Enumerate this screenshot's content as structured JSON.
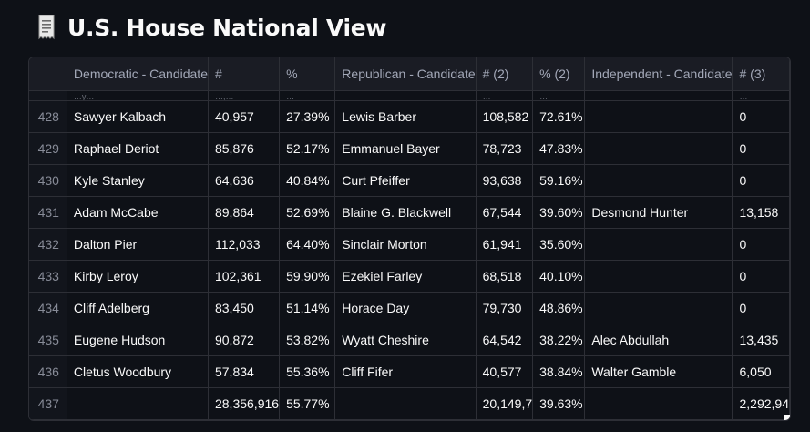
{
  "page": {
    "title": "U.S. House National View",
    "icon": "receipt-icon"
  },
  "table": {
    "columns": [
      "",
      "Democratic - Candidate",
      "#",
      "%",
      "Republican - Candidate",
      "# (2)",
      "% (2)",
      "Independent - Candidate",
      "# (3)"
    ],
    "partial_row": [
      "",
      "…y…",
      "…,…",
      "…",
      "",
      "…",
      "…",
      "",
      "…"
    ],
    "rows": [
      [
        "428",
        "Sawyer Kalbach",
        "40,957",
        "27.39%",
        "Lewis Barber",
        "108,582",
        "72.61%",
        "",
        "0"
      ],
      [
        "429",
        "Raphael Deriot",
        "85,876",
        "52.17%",
        "Emmanuel Bayer",
        "78,723",
        "47.83%",
        "",
        "0"
      ],
      [
        "430",
        "Kyle Stanley",
        "64,636",
        "40.84%",
        "Curt Pfeiffer",
        "93,638",
        "59.16%",
        "",
        "0"
      ],
      [
        "431",
        "Adam McCabe",
        "89,864",
        "52.69%",
        "Blaine G. Blackwell",
        "67,544",
        "39.60%",
        "Desmond Hunter",
        "13,158"
      ],
      [
        "432",
        "Dalton Pier",
        "112,033",
        "64.40%",
        "Sinclair Morton",
        "61,941",
        "35.60%",
        "",
        "0"
      ],
      [
        "433",
        "Kirby Leroy",
        "102,361",
        "59.90%",
        "Ezekiel Farley",
        "68,518",
        "40.10%",
        "",
        "0"
      ],
      [
        "434",
        "Cliff Adelberg",
        "83,450",
        "51.14%",
        "Horace Day",
        "79,730",
        "48.86%",
        "",
        "0"
      ],
      [
        "435",
        "Eugene Hudson",
        "90,872",
        "53.82%",
        "Wyatt Cheshire",
        "64,542",
        "38.22%",
        "Alec Abdullah",
        "13,435"
      ],
      [
        "436",
        "Cletus Woodbury",
        "57,834",
        "55.36%",
        "Cliff Fifer",
        "40,577",
        "38.84%",
        "Walter Gamble",
        "6,050"
      ],
      [
        "437",
        "",
        "28,356,916",
        "55.77%",
        "",
        "20,149,7",
        "39.63%",
        "",
        "2,292,94"
      ]
    ]
  },
  "colors": {
    "background": "#0e1117",
    "header_bg": "#1a1c24",
    "grid_line": "#2d2f36",
    "text": "#fafafa",
    "muted_text": "#a3a8b8"
  }
}
